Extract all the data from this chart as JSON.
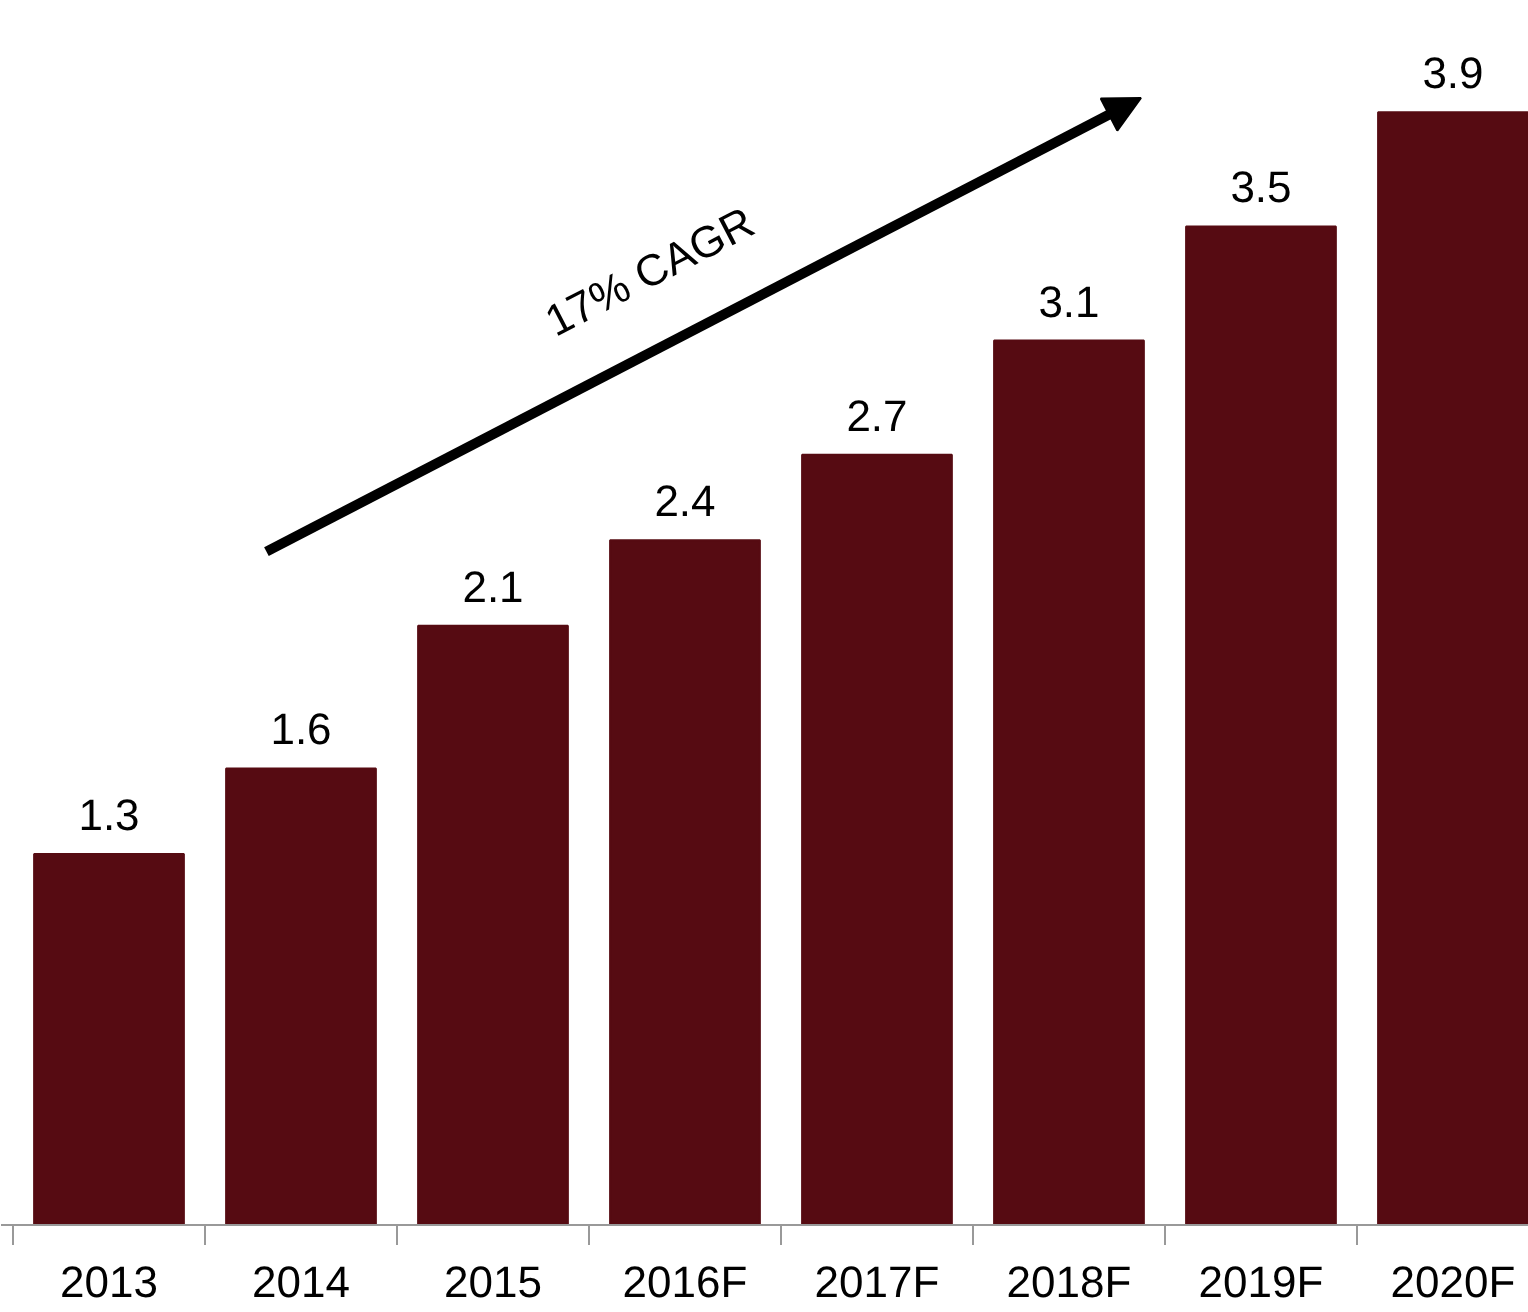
{
  "chart_data": {
    "type": "bar",
    "categories": [
      "2013",
      "2014",
      "2015",
      "2016F",
      "2017F",
      "2018F",
      "2019F",
      "2020F"
    ],
    "values": [
      1.3,
      1.6,
      2.1,
      2.4,
      2.7,
      3.1,
      3.5,
      3.9
    ],
    "color": "#560b12",
    "data_labels": true,
    "grid": false,
    "annotations": [
      "17% CAGR"
    ]
  }
}
